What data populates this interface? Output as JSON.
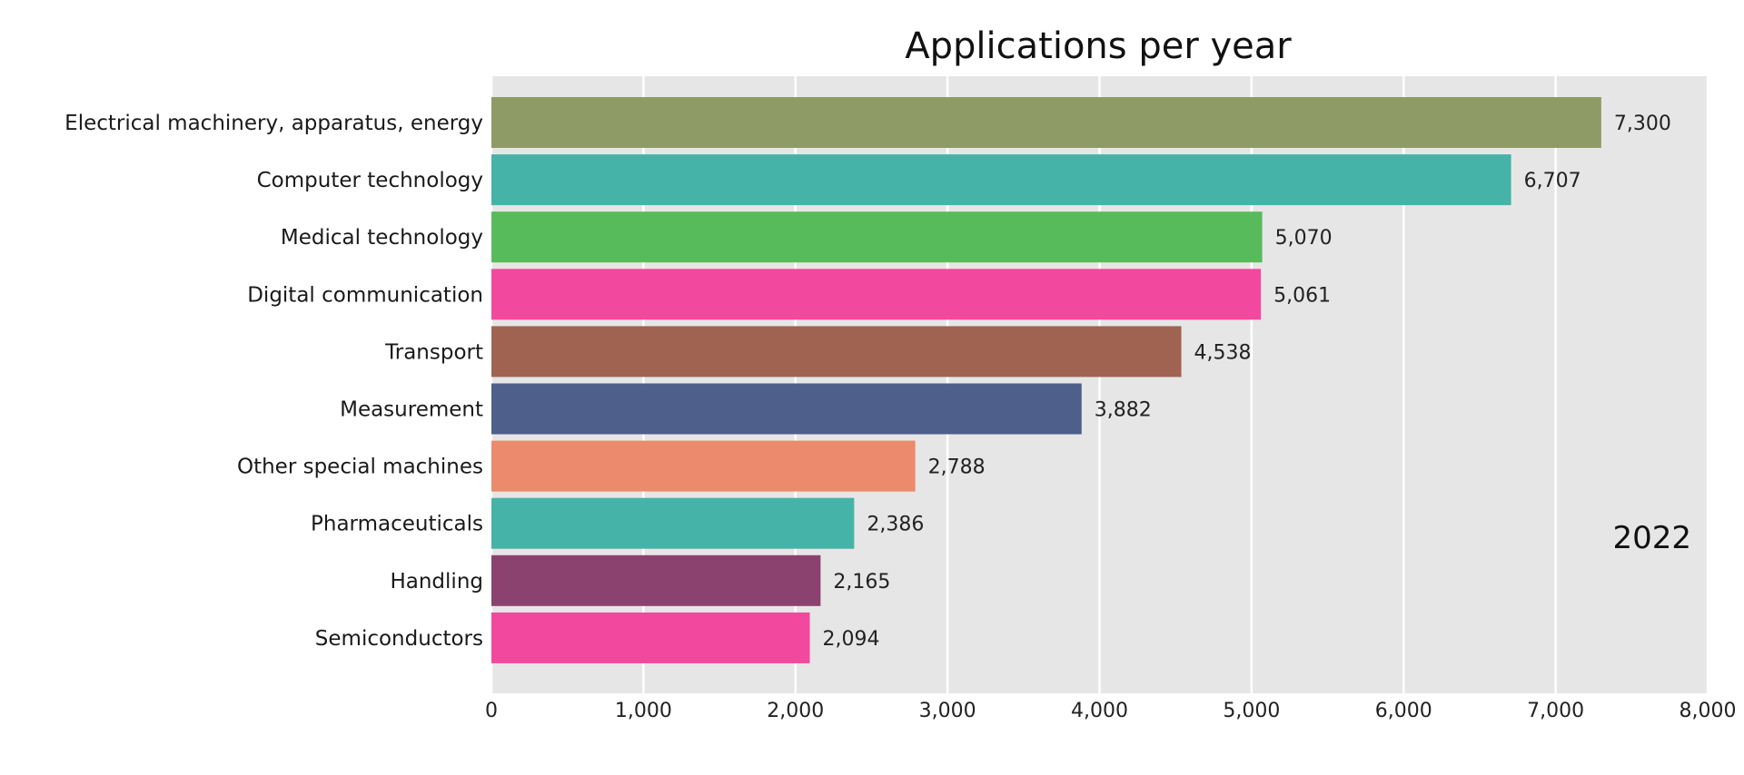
{
  "chart_data": {
    "type": "bar",
    "orientation": "horizontal",
    "title": "Applications per year",
    "year_label": "2022",
    "categories": [
      "Electrical machinery, apparatus, energy",
      "Computer technology",
      "Medical technology",
      "Digital communication",
      "Transport",
      "Measurement",
      "Other special machines",
      "Pharmaceuticals",
      "Handling",
      "Semiconductors"
    ],
    "values": [
      7300,
      6707,
      5070,
      5061,
      4538,
      3882,
      2788,
      2386,
      2165,
      2094
    ],
    "value_labels": [
      "7,300",
      "6,707",
      "5,070",
      "5,061",
      "4,538",
      "3,882",
      "2,788",
      "2,386",
      "2,165",
      "2,094"
    ],
    "colors": [
      "#8e9b66",
      "#46b3a8",
      "#58bb5b",
      "#f2489e",
      "#a06352",
      "#4d5f8a",
      "#eb8a6d",
      "#46b3a8",
      "#8b426f",
      "#f2489e"
    ],
    "xlim": [
      0,
      8000
    ],
    "xticks": [
      0,
      1000,
      2000,
      3000,
      4000,
      5000,
      6000,
      7000,
      8000
    ],
    "xtick_labels": [
      "0",
      "1,000",
      "2,000",
      "3,000",
      "4,000",
      "5,000",
      "6,000",
      "7,000",
      "8,000"
    ],
    "xlabel": "",
    "ylabel": "",
    "grid": true,
    "background_color": "#e6e6e6"
  }
}
